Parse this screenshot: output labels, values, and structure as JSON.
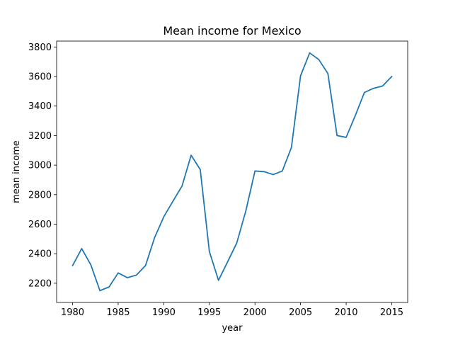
{
  "chart_data": {
    "type": "line",
    "title": "Mean income for Mexico",
    "xlabel": "year",
    "ylabel": "mean income",
    "xlim": [
      1978.25,
      2016.75
    ],
    "ylim": [
      2070,
      3840
    ],
    "xticks": [
      1980,
      1985,
      1990,
      1995,
      2000,
      2005,
      2010,
      2015
    ],
    "yticks": [
      2200,
      2400,
      2600,
      2800,
      3000,
      3200,
      3400,
      3600,
      3800
    ],
    "grid": false,
    "series": [
      {
        "color": "#1f77b4",
        "x": [
          1980,
          1981,
          1982,
          1983,
          1984,
          1985,
          1986,
          1987,
          1988,
          1989,
          1990,
          1991,
          1992,
          1993,
          1994,
          1995,
          1996,
          1997,
          1998,
          1999,
          2000,
          2001,
          2002,
          2003,
          2004,
          2005,
          2006,
          2007,
          2008,
          2009,
          2010,
          2011,
          2012,
          2013,
          2014,
          2015
        ],
        "y": [
          2320,
          2435,
          2325,
          2150,
          2175,
          2270,
          2238,
          2255,
          2320,
          2510,
          2650,
          2755,
          2858,
          3067,
          2970,
          2415,
          2220,
          2345,
          2472,
          2690,
          2960,
          2956,
          2936,
          2960,
          3120,
          3605,
          3760,
          3715,
          3620,
          3200,
          3188,
          3335,
          3492,
          3520,
          3536,
          3600
        ]
      }
    ]
  }
}
